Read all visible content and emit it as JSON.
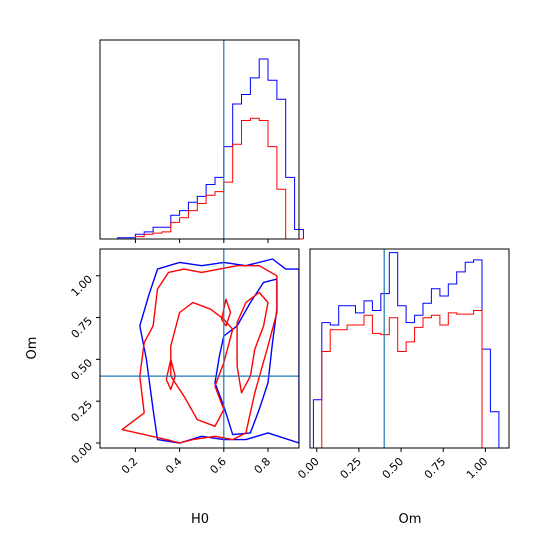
{
  "chart_data": {
    "type": "corner",
    "parameters": [
      "H0",
      "Om"
    ],
    "truth": {
      "H0": 0.6,
      "Om": 0.4
    },
    "truth_color": "#1f77b4",
    "series": [
      {
        "color": "#0000ff"
      },
      {
        "color": "#ff0000"
      }
    ],
    "grid": false,
    "panels": {
      "h0_hist": {
        "type": "histogram",
        "xlim": [
          0.04,
          0.94
        ],
        "ymax": 168,
        "bin_edges": [
          0.04,
          0.08,
          0.12,
          0.16,
          0.2,
          0.24,
          0.28,
          0.32,
          0.36,
          0.4,
          0.44,
          0.48,
          0.52,
          0.56,
          0.6,
          0.64,
          0.68,
          0.72,
          0.76,
          0.8,
          0.84,
          0.88,
          0.92,
          0.96
        ],
        "counts": [
          [
            0,
            0,
            1,
            1,
            4,
            6,
            10,
            10,
            20,
            24,
            31,
            36,
            46,
            52,
            78,
            114,
            122,
            136,
            152,
            134,
            118,
            52,
            8
          ],
          [
            0,
            0,
            0,
            0,
            2,
            4,
            5,
            6,
            14,
            18,
            24,
            30,
            37,
            40,
            48,
            80,
            100,
            102,
            100,
            78,
            42,
            0,
            0
          ]
        ]
      },
      "joint": {
        "type": "contour",
        "xlim": [
          0.04,
          0.94
        ],
        "ylim": [
          -0.03,
          1.16
        ],
        "x_ticks": [
          0.2,
          0.4,
          0.6,
          0.8
        ],
        "x_tick_labels": [
          "0.2",
          "0.4",
          "0.6",
          "0.8"
        ],
        "y_ticks": [
          0.0,
          0.25,
          0.5,
          0.75,
          1.0
        ],
        "y_tick_labels": [
          "0.00",
          "0.25",
          "0.50",
          "0.75",
          "1.00"
        ],
        "xlabel": "H0",
        "ylabel": "Om",
        "contours": [
          {
            "series": 0,
            "points": [
              [
                0.26,
                0.88
              ],
              [
                0.3,
                1.04
              ],
              [
                0.4,
                1.08
              ],
              [
                0.5,
                1.06
              ],
              [
                0.6,
                1.08
              ],
              [
                0.7,
                1.06
              ],
              [
                0.82,
                1.1
              ],
              [
                0.88,
                1.04
              ],
              [
                0.94,
                1.04
              ],
              [
                0.94,
                0.0
              ],
              [
                0.8,
                0.06
              ],
              [
                0.7,
                0.02
              ],
              [
                0.6,
                0.02
              ],
              [
                0.5,
                0.04
              ],
              [
                0.4,
                0.0
              ],
              [
                0.3,
                0.02
              ],
              [
                0.28,
                0.2
              ],
              [
                0.25,
                0.5
              ],
              [
                0.22,
                0.7
              ],
              [
                0.26,
                0.88
              ]
            ]
          },
          {
            "series": 0,
            "points": [
              [
                0.58,
                0.52
              ],
              [
                0.6,
                0.64
              ],
              [
                0.66,
                0.7
              ],
              [
                0.72,
                0.84
              ],
              [
                0.78,
                0.96
              ],
              [
                0.84,
                0.98
              ],
              [
                0.84,
                0.8
              ],
              [
                0.82,
                0.6
              ],
              [
                0.8,
                0.36
              ],
              [
                0.76,
                0.2
              ],
              [
                0.72,
                0.06
              ],
              [
                0.64,
                0.05
              ],
              [
                0.6,
                0.22
              ],
              [
                0.56,
                0.36
              ],
              [
                0.58,
                0.52
              ]
            ]
          },
          {
            "series": 1,
            "points": [
              [
                0.28,
                0.7
              ],
              [
                0.3,
                0.92
              ],
              [
                0.35,
                1.02
              ],
              [
                0.42,
                1.04
              ],
              [
                0.5,
                1.02
              ],
              [
                0.58,
                1.04
              ],
              [
                0.66,
                1.06
              ],
              [
                0.76,
                1.06
              ],
              [
                0.84,
                1.0
              ],
              [
                0.84,
                0.78
              ],
              [
                0.8,
                0.58
              ],
              [
                0.74,
                0.3
              ],
              [
                0.7,
                0.06
              ],
              [
                0.64,
                0.02
              ],
              [
                0.56,
                0.04
              ],
              [
                0.46,
                0.02
              ],
              [
                0.4,
                0.0
              ],
              [
                0.34,
                0.02
              ],
              [
                0.14,
                0.08
              ],
              [
                0.24,
                0.18
              ],
              [
                0.22,
                0.4
              ],
              [
                0.24,
                0.6
              ],
              [
                0.28,
                0.7
              ]
            ]
          },
          {
            "series": 1,
            "points": [
              [
                0.36,
                0.58
              ],
              [
                0.4,
                0.78
              ],
              [
                0.46,
                0.84
              ],
              [
                0.54,
                0.8
              ],
              [
                0.6,
                0.74
              ],
              [
                0.64,
                0.68
              ],
              [
                0.6,
                0.48
              ],
              [
                0.56,
                0.34
              ],
              [
                0.6,
                0.2
              ],
              [
                0.56,
                0.1
              ],
              [
                0.48,
                0.14
              ],
              [
                0.42,
                0.28
              ],
              [
                0.36,
                0.4
              ],
              [
                0.36,
                0.58
              ]
            ]
          },
          {
            "series": 1,
            "points": [
              [
                0.66,
                0.72
              ],
              [
                0.7,
                0.84
              ],
              [
                0.76,
                0.9
              ],
              [
                0.8,
                0.84
              ],
              [
                0.78,
                0.7
              ],
              [
                0.74,
                0.56
              ],
              [
                0.72,
                0.4
              ],
              [
                0.68,
                0.3
              ],
              [
                0.66,
                0.46
              ],
              [
                0.66,
                0.72
              ]
            ]
          },
          {
            "series": 1,
            "points": [
              [
                0.59,
                0.74
              ],
              [
                0.61,
                0.86
              ],
              [
                0.63,
                0.78
              ],
              [
                0.61,
                0.7
              ],
              [
                0.59,
                0.74
              ]
            ]
          },
          {
            "series": 1,
            "points": [
              [
                0.34,
                0.38
              ],
              [
                0.36,
                0.5
              ],
              [
                0.38,
                0.4
              ],
              [
                0.36,
                0.32
              ],
              [
                0.34,
                0.38
              ]
            ]
          }
        ]
      },
      "om_hist": {
        "type": "histogram",
        "xlim": [
          -0.04,
          1.14
        ],
        "x_ticks": [
          0.0,
          0.25,
          0.5,
          0.75,
          1.0
        ],
        "x_tick_labels": [
          "0.00",
          "0.25",
          "0.50",
          "0.75",
          "1.00"
        ],
        "xlabel": "Om",
        "ymax": 165,
        "bin_edges": [
          -0.02,
          0.03,
          0.08,
          0.13,
          0.18,
          0.23,
          0.28,
          0.33,
          0.38,
          0.43,
          0.48,
          0.53,
          0.58,
          0.63,
          0.68,
          0.73,
          0.78,
          0.83,
          0.88,
          0.93,
          0.98,
          1.03,
          1.08,
          1.13
        ],
        "counts": [
          [
            40,
            104,
            102,
            118,
            118,
            112,
            122,
            114,
            128,
            162,
            118,
            104,
            110,
            120,
            132,
            126,
            136,
            146,
            154,
            156,
            82,
            30,
            0
          ],
          [
            0,
            80,
            98,
            98,
            102,
            102,
            110,
            95,
            94,
            108,
            80,
            88,
            100,
            108,
            110,
            102,
            112,
            111,
            111,
            114,
            0,
            0,
            0
          ]
        ]
      }
    }
  }
}
